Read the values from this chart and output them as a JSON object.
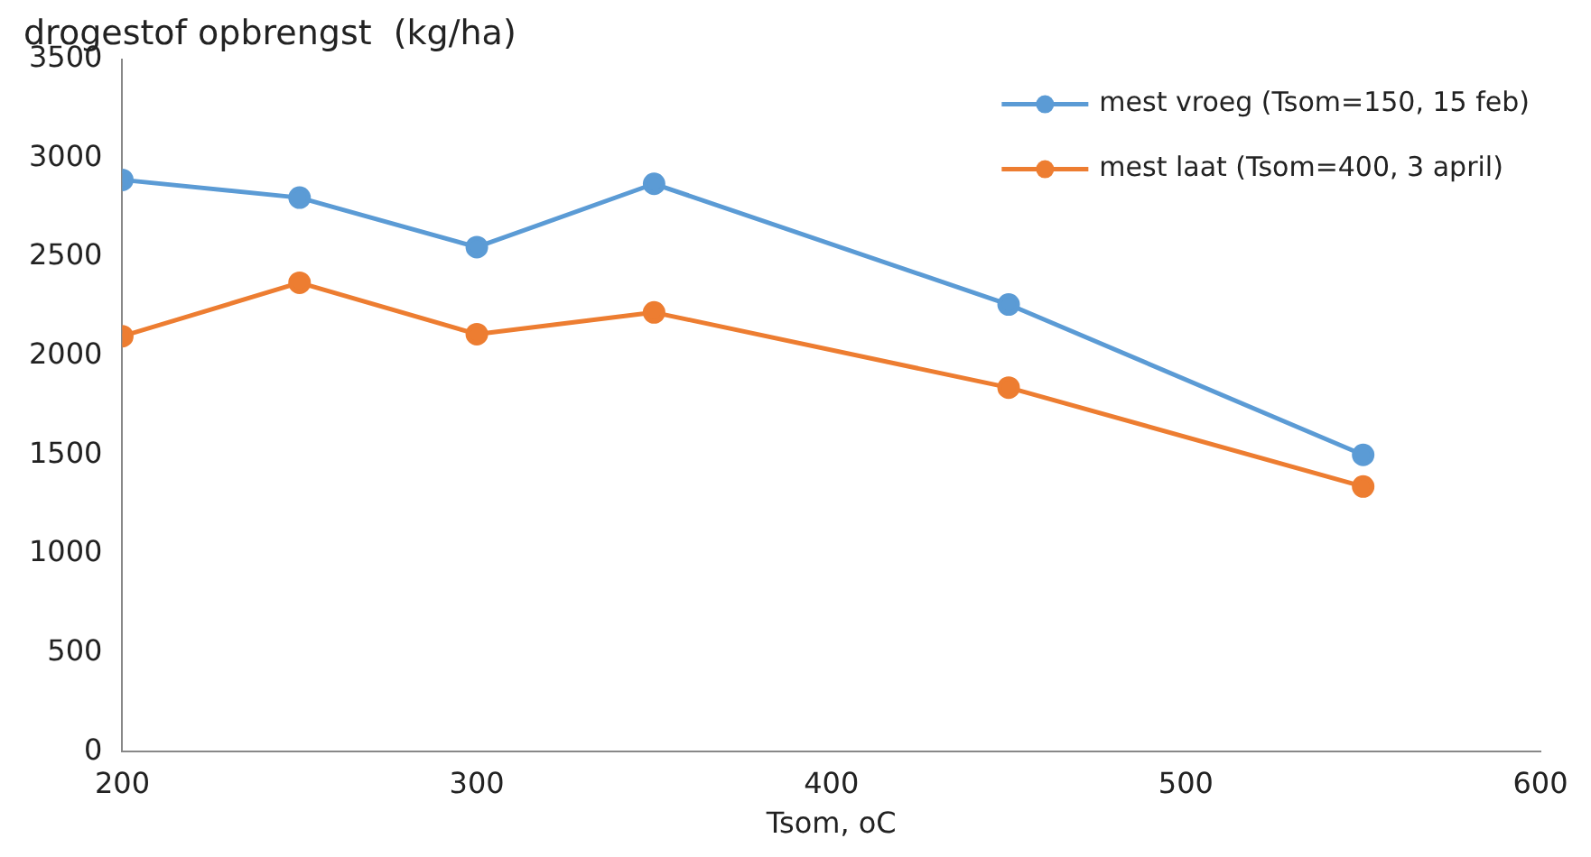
{
  "chart_data": {
    "type": "line",
    "title": "drogestof opbrengst  (kg/ha)",
    "xlabel": "Tsom, oC",
    "x": [
      200,
      250,
      300,
      350,
      450,
      550
    ],
    "series": [
      {
        "name": "mest vroeg (Tsom=150, 15 feb)",
        "color": "#5b9bd5",
        "values": [
          2890,
          2800,
          2550,
          2870,
          2260,
          1500
        ]
      },
      {
        "name": "mest laat (Tsom=400, 3 april)",
        "color": "#ed7d31",
        "values": [
          2100,
          2370,
          2110,
          2220,
          1840,
          1340
        ]
      }
    ],
    "xlim": [
      200,
      600
    ],
    "xticks": [
      200,
      300,
      400,
      500,
      600
    ],
    "ylim": [
      0,
      3500
    ],
    "yticks": [
      0,
      500,
      1000,
      1500,
      2000,
      2500,
      3000,
      3500
    ],
    "grid": false,
    "legend": "top right",
    "marker": "circle",
    "line_style": "solid"
  }
}
